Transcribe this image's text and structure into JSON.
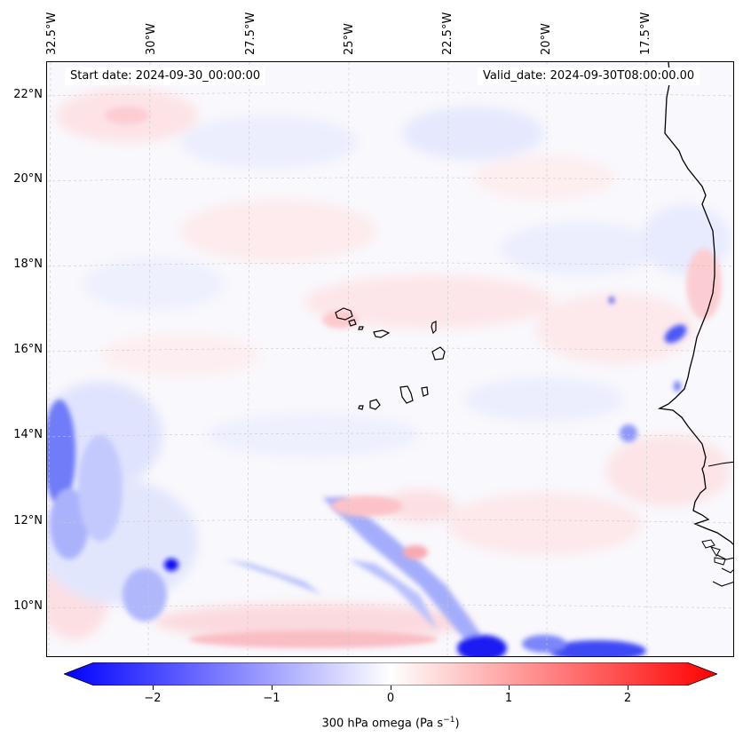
{
  "map": {
    "start_date": "Start date: 2024-09-30_00:00:00",
    "valid_date": "Valid_date: 2024-09-30T08:00:00.00",
    "longitude_labels": [
      "32.5°W",
      "30°W",
      "27.5°W",
      "25°W",
      "22.5°W",
      "20°W",
      "17.5°W"
    ],
    "latitude_labels": [
      "22°N",
      "20°N",
      "18°N",
      "16°N",
      "14°N",
      "12°N",
      "10°N"
    ],
    "field": "300 hPa omega",
    "region": "Cabo Verde / West African coast"
  },
  "colorbar": {
    "label": "300 hPa omega (Pa s",
    "label_sup": "−1",
    "label_end": ")",
    "ticks": [
      "−2",
      "−1",
      "0",
      "1",
      "2"
    ],
    "range": [
      -2.6,
      2.6
    ],
    "colormap": [
      "#0000ff",
      "#ffffff",
      "#ff0000"
    ]
  }
}
